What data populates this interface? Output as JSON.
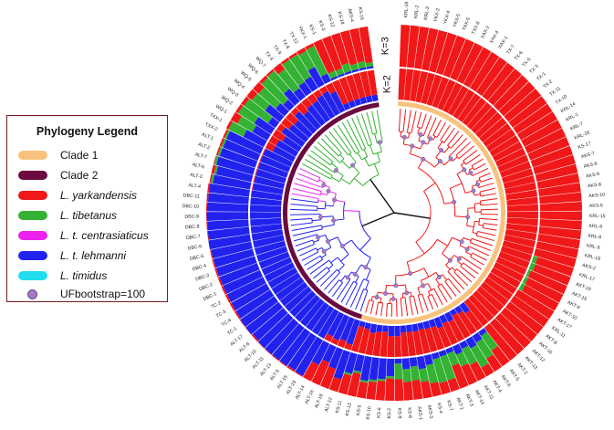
{
  "legend": {
    "title": "Phylogeny Legend",
    "items": [
      {
        "label": "Clade 1",
        "color": "#f9c27c",
        "italic": false,
        "kind": "swatch"
      },
      {
        "label": "Clade 2",
        "color": "#6b0a3e",
        "italic": false,
        "kind": "swatch"
      },
      {
        "label": "L. yarkandensis",
        "color": "#f01818",
        "italic": true,
        "kind": "swatch"
      },
      {
        "label": "L. tibetanus",
        "color": "#33b233",
        "italic": true,
        "kind": "swatch"
      },
      {
        "label": "L. t. centrasiaticus",
        "color": "#ee22ee",
        "italic": true,
        "kind": "swatch"
      },
      {
        "label": "L. t. lehmanni",
        "color": "#2222ee",
        "italic": true,
        "kind": "swatch"
      },
      {
        "label": "L. timidus",
        "color": "#22ddee",
        "italic": true,
        "kind": "swatch"
      },
      {
        "label": "UFbootstrap=100",
        "color": "#a27bc4",
        "italic": false,
        "kind": "dot"
      }
    ]
  },
  "ring_labels": {
    "inner": "K=2",
    "outer": "K=3"
  },
  "colors": {
    "yarkandensis": "#f01818",
    "tibetanus": "#33b233",
    "lehmanni": "#2222ee",
    "centrasiaticus": "#ee22ee",
    "clade1": "#f9c27c",
    "clade2": "#6b0a3e",
    "bootstrap": "#a27bc4"
  },
  "tips": [
    "KRL-18",
    "KRL-2",
    "KRL-3",
    "YKX-2",
    "YKX-4",
    "YKX-5",
    "TXX-5",
    "TXX-8",
    "XAX-2",
    "XAX-4",
    "XAX-1",
    "TX-7",
    "TX-6",
    "TX-5",
    "TX-3",
    "TX-1",
    "TX-2",
    "TX-11",
    "TX-10",
    "KRL-14",
    "KRL-1",
    "KRL-7",
    "KRL-16",
    "KS-17",
    "AKS-7",
    "AKS-6",
    "AKS-9",
    "AKS-8",
    "AKS-10",
    "AKS-5",
    "KRL-15",
    "KRL-6",
    "KRL-8",
    "KRL-9",
    "KRL-19",
    "AKS-2",
    "KRL-17",
    "AKT-19",
    "AKT-15",
    "AKT-9",
    "AKT-10",
    "AKT-17",
    "KRL-11",
    "AKT-8",
    "AKT-16",
    "AKT-12",
    "AKT-13",
    "AKT-2",
    "AKT-5",
    "AKT-6",
    "AKT-4",
    "AKT-11",
    "AKT-14",
    "AKT-3",
    "AKT-1",
    "KS-7",
    "KS-4",
    "AKS-3",
    "AKS-1",
    "KS-8",
    "KS-9",
    "KS-2",
    "KS-6",
    "KS-10",
    "KS-5",
    "KS-13",
    "KS-11",
    "ALT-12",
    "ALT-18",
    "ALT-16",
    "ALT-14",
    "ALT-19",
    "ALT-15",
    "ALT-5",
    "ALT-13",
    "ALT-11",
    "ALT-10",
    "ALT-9",
    "ALT-17",
    "TC-1",
    "TC-4",
    "TC-3",
    "TC-2",
    "DBC-1",
    "DBC-2",
    "DBC-3",
    "DBC-4",
    "DBC-5",
    "DBC-6",
    "DBC-7",
    "DBC-8",
    "DBC-9",
    "DBC-10",
    "DBC-11",
    "ALT-4",
    "ALT-3",
    "ALT-6",
    "ALT-7",
    "ALT-2",
    "ALT-1",
    "TXX-2",
    "TXX-1",
    "WQ-1",
    "WQ-2",
    "WQ-3",
    "WQ-4",
    "WQ-5",
    "WQ-6",
    "WQ-7",
    "TX-4",
    "TX-9",
    "TX-8",
    "TX-12",
    "YKX-1",
    "KS-1",
    "KS-3",
    "KS-12",
    "KS-14",
    "AKS-4",
    "KS-16"
  ]
}
